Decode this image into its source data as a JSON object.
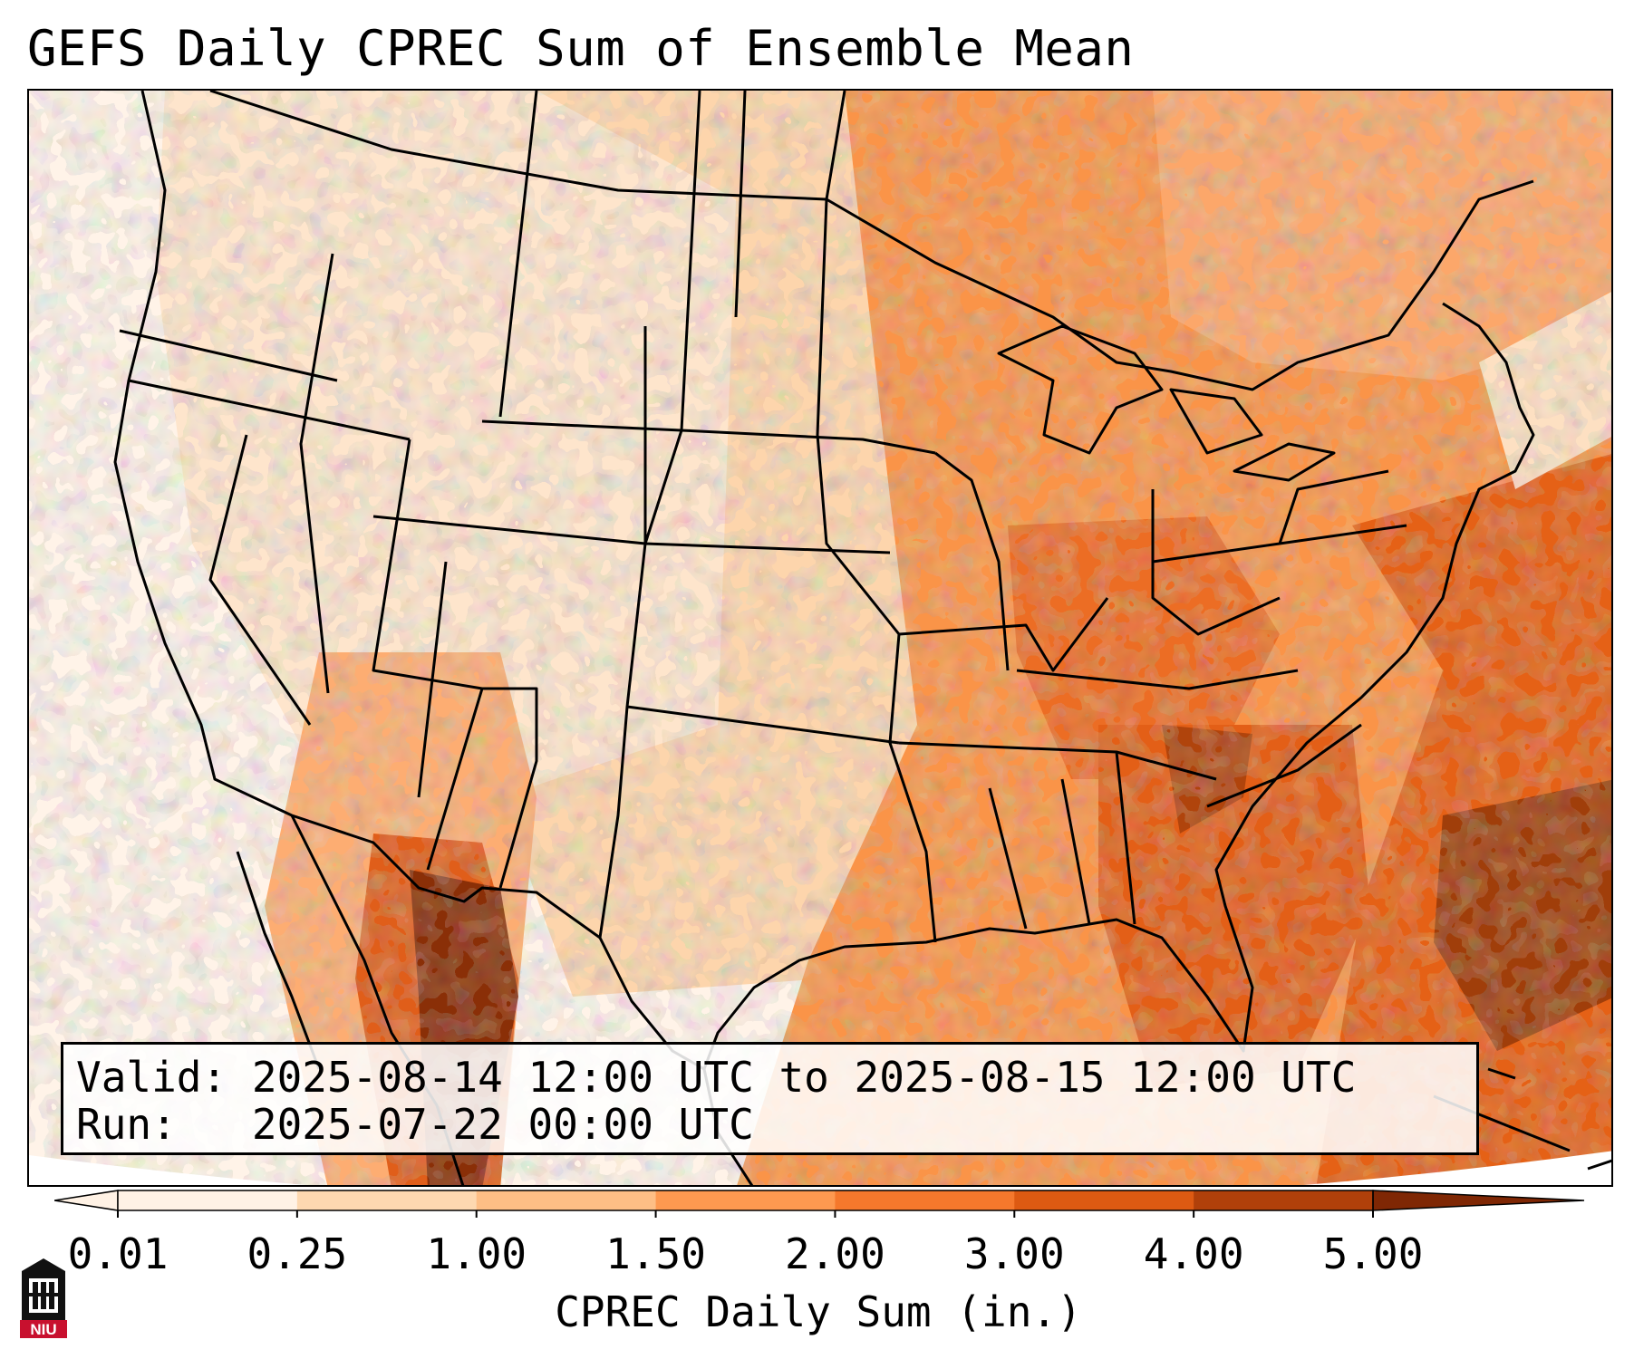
{
  "title": "GEFS Daily CPREC Sum of Ensemble Mean",
  "info": {
    "valid_label": "Valid:",
    "valid_value": "2025-08-14 12:00 UTC to 2025-08-15 12:00 UTC",
    "run_label": "Run:",
    "run_value": "2025-07-22 00:00 UTC"
  },
  "colorbar": {
    "label": "CPREC Daily Sum (in.)",
    "ticks": [
      "0.01",
      "0.25",
      "1.00",
      "1.50",
      "2.00",
      "3.00",
      "4.00",
      "5.00"
    ],
    "colors": [
      "#fff2e5",
      "#fdd8b0",
      "#fdbe85",
      "#fd9950",
      "#f5782c",
      "#dd5a12",
      "#b0400a",
      "#7f2704"
    ],
    "extend": "both"
  },
  "map": {
    "projection": "Lambert Conformal",
    "region": "Contiguous United States, northern Mexico, Gulf of Mexico, western Atlantic",
    "field": "CPREC daily sum, GEFS ensemble mean"
  },
  "logo": {
    "text": "NIU",
    "colors": {
      "red": "#c8102e",
      "black": "#111111"
    }
  }
}
